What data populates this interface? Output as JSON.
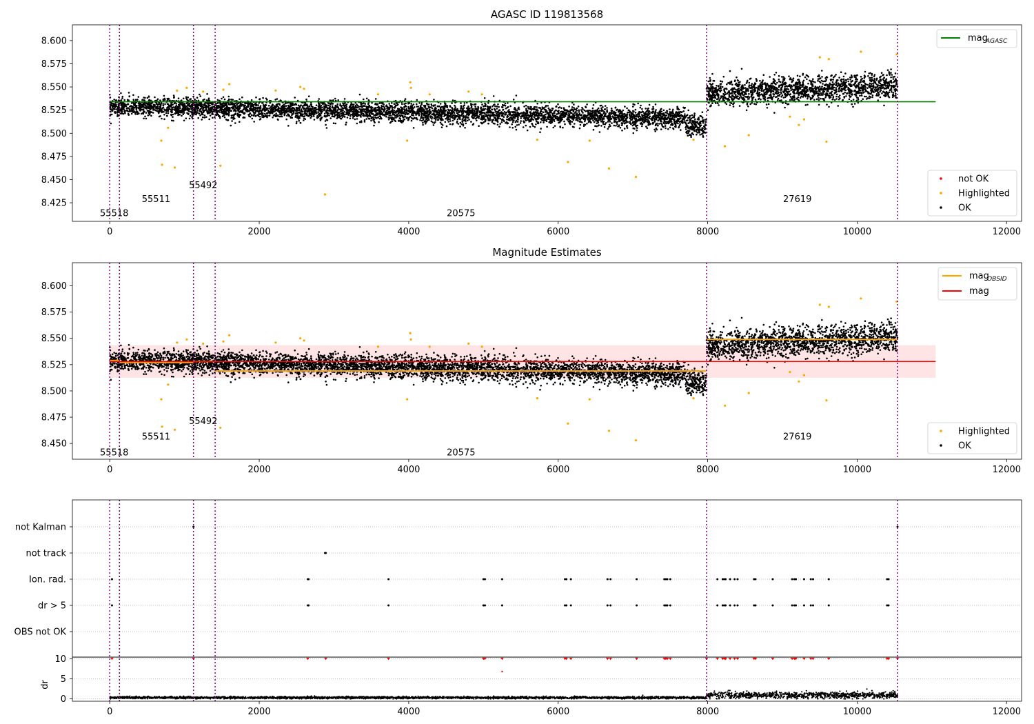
{
  "chart_data": [
    {
      "type": "scatter",
      "title": "AGASC ID 119813568",
      "xlim": [
        -500,
        12200
      ],
      "ylim": [
        8.405,
        8.617
      ],
      "xticks": [
        0,
        2000,
        4000,
        6000,
        8000,
        10000,
        12000
      ],
      "yticks": [
        8.425,
        8.45,
        8.475,
        8.5,
        8.525,
        8.55,
        8.575,
        8.6
      ],
      "obs_boundaries": [
        0,
        130,
        1120,
        1410,
        7985,
        10540
      ],
      "obs_labels": [
        {
          "text": "55518",
          "x": 60,
          "y": 8.414
        },
        {
          "text": "55511",
          "x": 620,
          "y": 8.429
        },
        {
          "text": "55492",
          "x": 1250,
          "y": 8.444
        },
        {
          "text": "20575",
          "x": 4700,
          "y": 8.414
        },
        {
          "text": "27619",
          "x": 9200,
          "y": 8.429
        }
      ],
      "agasc_mag": {
        "value": 8.534,
        "x": [
          0,
          11050
        ],
        "color": "#008000"
      },
      "ok_trend": [
        {
          "x0": 0,
          "x1": 1410,
          "mean": 8.528,
          "sd": 0.005
        },
        {
          "x0": 1410,
          "x1": 7700,
          "mean": 8.5215,
          "sd": 0.0055,
          "slope_total": -0.011
        },
        {
          "x0": 7700,
          "x1": 7985,
          "mean": 8.508,
          "sd": 0.006
        },
        {
          "x0": 7985,
          "x1": 10540,
          "mean": 8.547,
          "sd": 0.007,
          "slope_total": 0.008
        }
      ],
      "highlighted_points": [
        [
          690,
          8.492
        ],
        [
          700,
          8.466
        ],
        [
          780,
          8.506
        ],
        [
          870,
          8.463
        ],
        [
          900,
          8.546
        ],
        [
          1030,
          8.549
        ],
        [
          1250,
          8.545
        ],
        [
          1480,
          8.465
        ],
        [
          1520,
          8.547
        ],
        [
          1600,
          8.553
        ],
        [
          2220,
          8.546
        ],
        [
          2550,
          8.55
        ],
        [
          2600,
          8.548
        ],
        [
          2880,
          8.434
        ],
        [
          3590,
          8.542
        ],
        [
          3980,
          8.492
        ],
        [
          4020,
          8.555
        ],
        [
          4030,
          8.549
        ],
        [
          4280,
          8.542
        ],
        [
          4800,
          8.545
        ],
        [
          4980,
          8.542
        ],
        [
          5720,
          8.493
        ],
        [
          6130,
          8.469
        ],
        [
          6420,
          8.492
        ],
        [
          6680,
          8.462
        ],
        [
          7040,
          8.453
        ],
        [
          7810,
          8.493
        ],
        [
          8230,
          8.486
        ],
        [
          8550,
          8.498
        ],
        [
          9100,
          8.518
        ],
        [
          9220,
          8.509
        ],
        [
          9290,
          8.515
        ],
        [
          9500,
          8.582
        ],
        [
          9590,
          8.491
        ],
        [
          9620,
          8.58
        ],
        [
          10050,
          8.588
        ],
        [
          10530,
          8.585
        ]
      ],
      "legend_top": {
        "placement": "top-right",
        "entries": [
          "mag",
          "AGASC"
        ]
      },
      "legend_bottom": {
        "placement": "lower-right",
        "entries": [
          "not OK",
          "Highlighted",
          "OK"
        ]
      },
      "colors": {
        "ok": "#000000",
        "highlighted": "#ffa500",
        "not_ok": "#ff0000",
        "boundary": "#800080"
      }
    },
    {
      "type": "scatter",
      "title": "Magnitude Estimates",
      "xlim": [
        -500,
        12200
      ],
      "ylim": [
        8.435,
        8.622
      ],
      "xticks": [
        0,
        2000,
        4000,
        6000,
        8000,
        10000,
        12000
      ],
      "yticks": [
        8.45,
        8.475,
        8.5,
        8.525,
        8.55,
        8.575,
        8.6
      ],
      "obs_boundaries": [
        0,
        130,
        1120,
        1410,
        7985,
        10540
      ],
      "obs_labels": [
        {
          "text": "55518",
          "x": 60,
          "y": 8.4415
        },
        {
          "text": "55511",
          "x": 620,
          "y": 8.4565
        },
        {
          "text": "55492",
          "x": 1250,
          "y": 8.4715
        },
        {
          "text": "20575",
          "x": 4700,
          "y": 8.4415
        },
        {
          "text": "27619",
          "x": 9200,
          "y": 8.4565
        }
      ],
      "mean_mag": {
        "value": 8.528,
        "band": [
          8.5125,
          8.5435
        ],
        "x": [
          0,
          11050
        ],
        "color": "#ff0000",
        "band_color": "#ffdfe0"
      },
      "obsid_mag": [
        {
          "x0": 0,
          "x1": 130,
          "value": 8.529
        },
        {
          "x0": 130,
          "x1": 1120,
          "value": 8.527
        },
        {
          "x0": 1120,
          "x1": 1410,
          "value": 8.528
        },
        {
          "x0": 1410,
          "x1": 7985,
          "value": 8.519
        },
        {
          "x0": 7985,
          "x1": 10540,
          "value": 8.549
        }
      ],
      "legend_top": {
        "placement": "top-right",
        "entries": [
          "mag",
          "OBSID",
          "mag"
        ]
      },
      "legend_bottom": {
        "placement": "lower-right",
        "entries": [
          "Highlighted",
          "OK"
        ]
      }
    },
    {
      "type": "scatter",
      "title": "",
      "flag_rows": [
        "not Kalman",
        "not track",
        "Ion. rad.",
        "dr > 5",
        "OBS not OK"
      ],
      "flag_points": {
        "not Kalman": [
          1120,
          10540
        ],
        "not track": [
          2880,
          2890
        ],
        "Ion. rad.": [
          30,
          2650,
          2660,
          3730,
          5000,
          5020,
          5250,
          6090,
          6110,
          6170,
          6660,
          6700,
          7050,
          7420,
          7440,
          7460,
          7500,
          8130,
          8200,
          8220,
          8240,
          8300,
          8360,
          8400,
          8620,
          8640,
          8870,
          9130,
          9160,
          9180,
          9290,
          9380,
          9410,
          9620,
          10400,
          10420
        ],
        "dr > 5": [
          30,
          2650,
          2660,
          3730,
          5000,
          5020,
          5250,
          6090,
          6110,
          6170,
          6660,
          6700,
          7050,
          7420,
          7440,
          7460,
          7500,
          8130,
          8200,
          8220,
          8240,
          8300,
          8360,
          8400,
          8620,
          8640,
          8870,
          9130,
          9160,
          9180,
          9290,
          9380,
          9410,
          9620,
          10400,
          10420
        ],
        "OBS not OK": []
      },
      "dr": {
        "ylabel": "dr",
        "ylim": [
          -0.6,
          10.4
        ],
        "yticks": [
          0,
          5,
          10
        ],
        "baseline": [
          {
            "x0": 0,
            "x1": 7985,
            "value": 0.3
          },
          {
            "x0": 7985,
            "x1": 10540,
            "value": 0.9
          }
        ],
        "outliers": [
          [
            5250,
            6.8
          ]
        ],
        "capped_at_10": [
          30,
          1120,
          2650,
          2890,
          3730,
          5000,
          5020,
          5250,
          6090,
          6110,
          6170,
          6660,
          6700,
          7050,
          7420,
          7440,
          7460,
          7500,
          7985,
          8130,
          8200,
          8220,
          8240,
          8300,
          8360,
          8400,
          8620,
          8640,
          8870,
          9130,
          9160,
          9180,
          9290,
          9380,
          9410,
          9620,
          10400,
          10420,
          10540
        ]
      },
      "xlim": [
        -500,
        12200
      ],
      "xticks": [
        0,
        2000,
        4000,
        6000,
        8000,
        10000,
        12000
      ]
    }
  ]
}
